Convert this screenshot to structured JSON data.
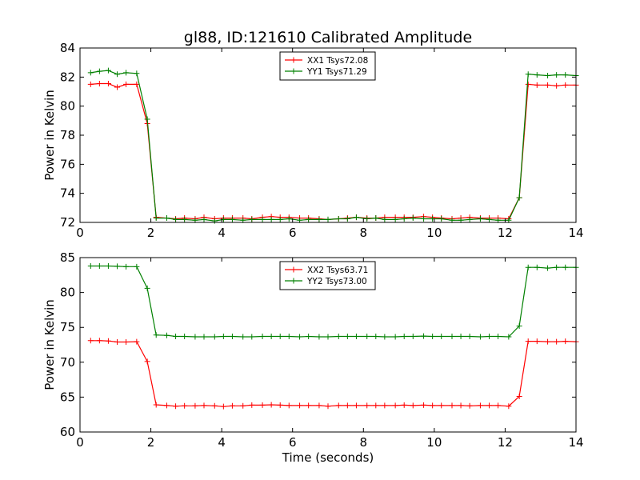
{
  "chart_data": [
    {
      "type": "line",
      "title": "gl88, ID:121610 Calibrated Amplitude",
      "xlabel": "",
      "ylabel": "Power in Kelvin",
      "xlim": [
        0,
        14
      ],
      "ylim": [
        72,
        84
      ],
      "xticks": [
        "0",
        "2",
        "4",
        "6",
        "8",
        "10",
        "12",
        "14"
      ],
      "yticks": [
        "72",
        "74",
        "76",
        "78",
        "80",
        "82",
        "84"
      ],
      "grid": false,
      "legend": "top-center",
      "x": [
        0.3,
        0.55,
        0.8,
        1.05,
        1.3,
        1.6,
        1.9,
        2.15,
        2.45,
        2.7,
        2.95,
        3.25,
        3.5,
        3.8,
        4.05,
        4.3,
        4.6,
        4.85,
        5.15,
        5.4,
        5.65,
        5.9,
        6.2,
        6.45,
        6.75,
        7.0,
        7.3,
        7.55,
        7.8,
        8.1,
        8.35,
        8.6,
        8.9,
        9.15,
        9.4,
        9.7,
        9.95,
        10.2,
        10.5,
        10.75,
        11.0,
        11.3,
        11.55,
        11.8,
        12.1,
        12.4,
        12.65,
        12.9,
        13.2,
        13.45,
        13.7,
        14.0
      ],
      "series": [
        {
          "name": "XX1 Tsys72.08",
          "color": "#ff0000",
          "values": [
            81.5,
            81.55,
            81.55,
            81.3,
            81.5,
            81.5,
            78.8,
            72.35,
            72.3,
            72.25,
            72.3,
            72.25,
            72.35,
            72.25,
            72.3,
            72.3,
            72.3,
            72.25,
            72.35,
            72.4,
            72.35,
            72.35,
            72.3,
            72.3,
            72.25,
            72.2,
            72.25,
            72.3,
            72.35,
            72.3,
            72.3,
            72.35,
            72.35,
            72.35,
            72.35,
            72.4,
            72.35,
            72.3,
            72.25,
            72.3,
            72.35,
            72.3,
            72.3,
            72.3,
            72.25,
            73.7,
            81.5,
            81.45,
            81.45,
            81.4,
            81.45,
            81.45
          ]
        },
        {
          "name": "YY1 Tsys71.29",
          "color": "#008000",
          "values": [
            82.3,
            82.4,
            82.45,
            82.2,
            82.3,
            82.25,
            79.1,
            72.3,
            72.3,
            72.2,
            72.2,
            72.15,
            72.2,
            72.1,
            72.2,
            72.2,
            72.15,
            72.2,
            72.2,
            72.2,
            72.2,
            72.25,
            72.15,
            72.2,
            72.2,
            72.2,
            72.25,
            72.25,
            72.35,
            72.25,
            72.3,
            72.2,
            72.2,
            72.25,
            72.3,
            72.25,
            72.25,
            72.25,
            72.15,
            72.15,
            72.2,
            72.25,
            72.2,
            72.15,
            72.15,
            73.7,
            82.2,
            82.15,
            82.1,
            82.15,
            82.15,
            82.1
          ]
        }
      ]
    },
    {
      "type": "line",
      "title": "",
      "xlabel": "Time (seconds)",
      "ylabel": "Power in Kelvin",
      "xlim": [
        0,
        14
      ],
      "ylim": [
        60,
        85
      ],
      "xticks": [
        "0",
        "2",
        "4",
        "6",
        "8",
        "10",
        "12",
        "14"
      ],
      "yticks": [
        "60",
        "65",
        "70",
        "75",
        "80",
        "85"
      ],
      "grid": false,
      "legend": "top-center",
      "x": [
        0.3,
        0.55,
        0.8,
        1.05,
        1.3,
        1.6,
        1.9,
        2.15,
        2.45,
        2.7,
        2.95,
        3.25,
        3.5,
        3.8,
        4.05,
        4.3,
        4.6,
        4.85,
        5.15,
        5.4,
        5.65,
        5.9,
        6.2,
        6.45,
        6.75,
        7.0,
        7.3,
        7.55,
        7.8,
        8.1,
        8.35,
        8.6,
        8.9,
        9.15,
        9.4,
        9.7,
        9.95,
        10.2,
        10.5,
        10.75,
        11.0,
        11.3,
        11.55,
        11.8,
        12.1,
        12.4,
        12.65,
        12.9,
        13.2,
        13.45,
        13.7,
        14.0
      ],
      "series": [
        {
          "name": "XX2 Tsys63.71",
          "color": "#ff0000",
          "values": [
            73.1,
            73.1,
            73.05,
            72.9,
            72.9,
            72.95,
            70.1,
            63.9,
            63.8,
            63.7,
            63.75,
            63.75,
            63.8,
            63.75,
            63.65,
            63.75,
            63.75,
            63.85,
            63.85,
            63.9,
            63.85,
            63.8,
            63.8,
            63.8,
            63.8,
            63.7,
            63.8,
            63.8,
            63.8,
            63.8,
            63.8,
            63.8,
            63.8,
            63.85,
            63.8,
            63.85,
            63.8,
            63.8,
            63.8,
            63.8,
            63.75,
            63.8,
            63.8,
            63.8,
            63.7,
            65.1,
            73.0,
            73.0,
            72.95,
            72.95,
            73.0,
            72.95
          ]
        },
        {
          "name": "YY2 Tsys73.00",
          "color": "#008000",
          "values": [
            83.8,
            83.8,
            83.8,
            83.75,
            83.7,
            83.7,
            80.6,
            73.9,
            73.85,
            73.7,
            73.7,
            73.65,
            73.65,
            73.65,
            73.7,
            73.7,
            73.65,
            73.65,
            73.7,
            73.7,
            73.7,
            73.7,
            73.65,
            73.7,
            73.65,
            73.65,
            73.7,
            73.7,
            73.7,
            73.7,
            73.7,
            73.65,
            73.65,
            73.7,
            73.7,
            73.75,
            73.7,
            73.7,
            73.7,
            73.7,
            73.7,
            73.65,
            73.7,
            73.7,
            73.65,
            75.2,
            83.6,
            83.6,
            83.5,
            83.6,
            83.6,
            83.6
          ]
        }
      ]
    }
  ]
}
